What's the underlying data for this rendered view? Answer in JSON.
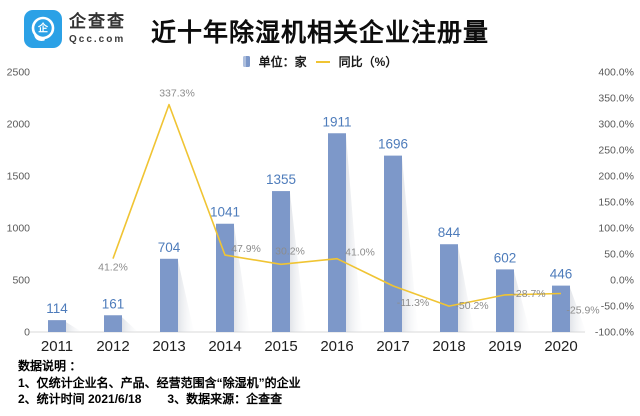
{
  "logo": {
    "name": "企查查",
    "domain": "Qcc.com"
  },
  "title": "近十年除湿机相关企业注册量",
  "legend": {
    "bar": "单位：家",
    "line": "同比（%）"
  },
  "chart_data": {
    "type": "bar",
    "subtype": "bar+line combo",
    "title": "近十年除湿机相关企业注册量",
    "categories": [
      "2011",
      "2012",
      "2013",
      "2014",
      "2015",
      "2016",
      "2017",
      "2018",
      "2019",
      "2020"
    ],
    "series": [
      {
        "name": "注册量（家）",
        "type": "bar",
        "axis": "left",
        "values": [
          114,
          161,
          704,
          1041,
          1355,
          1911,
          1696,
          844,
          602,
          446
        ]
      },
      {
        "name": "同比（%）",
        "type": "line",
        "axis": "right",
        "values": [
          null,
          41.2,
          337.3,
          47.9,
          30.2,
          41.0,
          -11.3,
          -50.2,
          -28.7,
          -25.9
        ]
      }
    ],
    "left_axis": {
      "min": 0,
      "max": 2500,
      "ticks": [
        0,
        500,
        1000,
        1500,
        2000,
        2500
      ]
    },
    "right_axis": {
      "min": -100,
      "max": 400,
      "tick_step": 50,
      "tick_labels": [
        "400.0%",
        "350.0%",
        "300.0%",
        "250.0%",
        "200.0%",
        "150.0%",
        "100.0%",
        "50.0%",
        "0.0%",
        "-50.0%",
        "-100.0%"
      ]
    },
    "grid": "off",
    "legend_position": "top-center",
    "colors": {
      "bar": "#7d98c9",
      "bar_shadow": "#c9ced6",
      "bar_label": "#4e7cbb",
      "line": "#f0c433",
      "pct_label": "#8c8c8c",
      "axis_label": "#595959",
      "year_label": "#1f1f1f",
      "axis_line": "#d9d9d9",
      "logo_blue": "#2ba1e6"
    }
  },
  "footer": {
    "heading": "数据说明 ：",
    "line1": "1、仅统计企业名、产品、经营范围含“除湿机”的企业",
    "line2a": "2、统计时间 2021/6/18",
    "line2b": "3、数据来源：企查查"
  }
}
